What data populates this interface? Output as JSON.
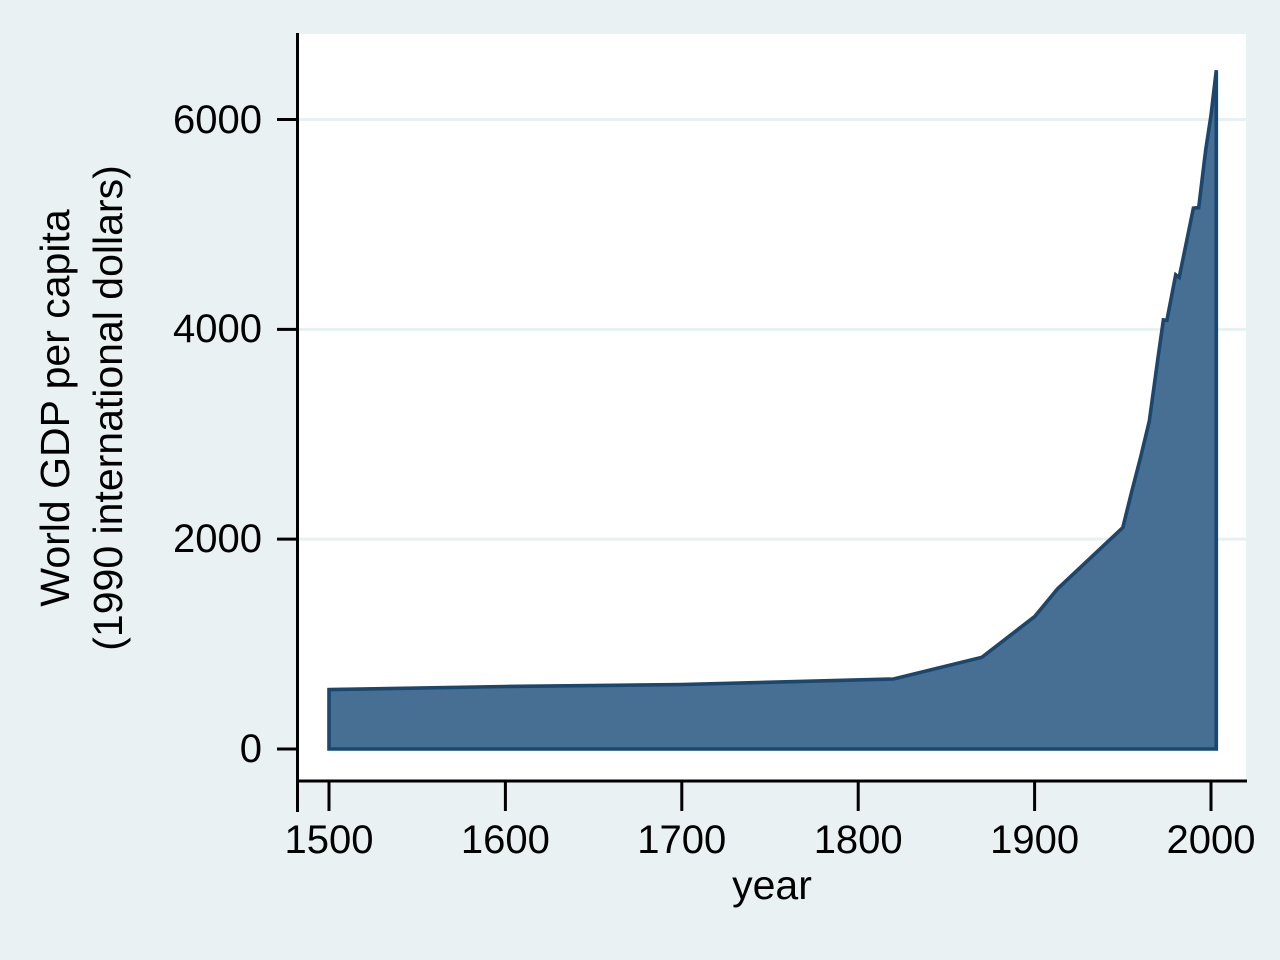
{
  "chart_data": {
    "type": "area",
    "title": "",
    "xlabel": "year",
    "ylabel_lines": [
      "World GDP per capita",
      "(1990 international dollars)"
    ],
    "x_ticks": [
      "1500",
      "1600",
      "1700",
      "1800",
      "1900",
      "2000"
    ],
    "y_ticks": [
      "0",
      "2000",
      "4000",
      "6000"
    ],
    "x_tick_values": [
      1500,
      1600,
      1700,
      1800,
      1900,
      2000
    ],
    "y_tick_values": [
      0,
      2000,
      4000,
      6000
    ],
    "xlim": [
      1500,
      2003
    ],
    "ylim": [
      0,
      6516
    ],
    "grid": "horizontal gridlines at 2000, 4000, 6000",
    "legend": "none",
    "series": [
      {
        "name": "World GDP per capita (1990 international dollars)",
        "points": [
          [
            1500,
            566
          ],
          [
            1600,
            596
          ],
          [
            1700,
            615
          ],
          [
            1820,
            667
          ],
          [
            1870,
            873
          ],
          [
            1900,
            1262
          ],
          [
            1913,
            1526
          ],
          [
            1950,
            2111
          ],
          [
            1955,
            2450
          ],
          [
            1960,
            2773
          ],
          [
            1965,
            3125
          ],
          [
            1970,
            3736
          ],
          [
            1973,
            4090
          ],
          [
            1975,
            4085
          ],
          [
            1980,
            4520
          ],
          [
            1982,
            4495
          ],
          [
            1990,
            5155
          ],
          [
            1993,
            5160
          ],
          [
            1997,
            5710
          ],
          [
            2000,
            6040
          ],
          [
            2003,
            6470
          ]
        ]
      }
    ],
    "colors": {
      "background": "#eaf1f3",
      "plot_background": "#ffffff",
      "gridline": "#e8f0f1",
      "axis": "#000000",
      "text": "#000000",
      "area_fill": "#476e93",
      "area_stroke": "#1a476f"
    }
  }
}
